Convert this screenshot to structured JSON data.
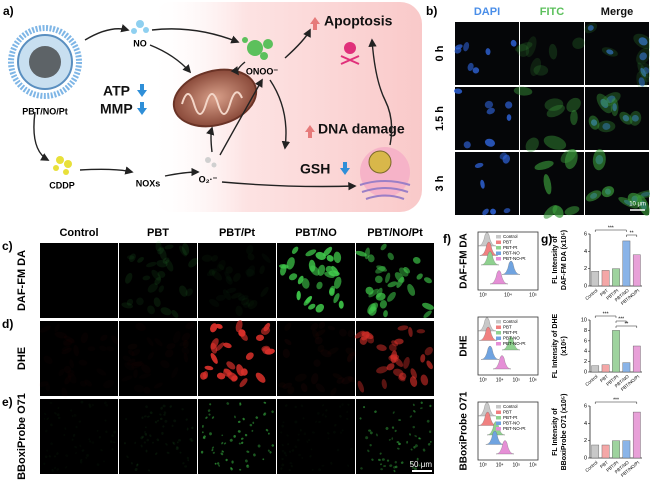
{
  "panel_a": {
    "label": "a)",
    "nanoparticle": "PBT/NO/Pt",
    "no": "NO",
    "onoo": "ONOO⁻",
    "apoptosis": "Apoptosis",
    "atp": "ATP",
    "mmp": "MMP",
    "dna": "DNA damage",
    "gsh": "GSH",
    "cddp": "CDDP",
    "noxs": "NOXs",
    "superoxide": "O₂·⁻"
  },
  "panel_b": {
    "label": "b)",
    "columns": [
      "DAPI",
      "FITC",
      "Merge"
    ],
    "rows": [
      "0 h",
      "1.5 h",
      "3 h"
    ],
    "scale": "10 μm"
  },
  "panel_cde": {
    "letters": [
      "c)",
      "d)",
      "e)"
    ],
    "columns": [
      "Control",
      "PBT",
      "PBT/Pt",
      "PBT/NO",
      "PBT/NO/Pt"
    ],
    "rows": [
      "DAF-FM DA",
      "DHE",
      "BBoxiProbe O71"
    ],
    "scale": "50 μm"
  },
  "panel_f": {
    "label": "f)",
    "legend": [
      "Control",
      "PBT",
      "PBT-Pt",
      "PBT-NO",
      "PBT-NO-Pt"
    ],
    "legend_colors": [
      "#c8c8c8",
      "#f08080",
      "#8fd18f",
      "#6fa3e0",
      "#e58fd6"
    ],
    "plots": [
      {
        "ylabel": "DAF-FM DA",
        "xtick_labels": [
          "10³",
          "10⁴",
          "10⁵"
        ]
      },
      {
        "ylabel": "DHE",
        "xtick_labels": [
          "10³",
          "10⁴",
          "10⁵",
          "10⁶"
        ]
      },
      {
        "ylabel": "BBoxiProbe O71",
        "xtick_labels": [
          "10³",
          "10⁴",
          "10⁵",
          "10⁶"
        ]
      }
    ]
  },
  "panel_g": {
    "label": "g)"
  },
  "chart_data": [
    {
      "type": "bar",
      "ylabel": [
        "FL Intensity of",
        "DAF-FM DA (x10⁵)"
      ],
      "categories": [
        "Control",
        "PBT",
        "PBT/Pt",
        "PBT/NO",
        "PBT/NO/Pt"
      ],
      "values": [
        1.7,
        1.8,
        2.0,
        5.2,
        3.6
      ],
      "colors": [
        "#c8c8c8",
        "#f4a7a7",
        "#9ed39e",
        "#8ab4e8",
        "#e8a0d8"
      ],
      "ylim": [
        0,
        6
      ],
      "yticks": [
        0,
        2,
        4,
        6
      ],
      "annotations": [
        "***",
        "**"
      ]
    },
    {
      "type": "bar",
      "ylabel": [
        "FL Intensity of DHE",
        "(x10⁵)"
      ],
      "categories": [
        "Control",
        "PBT",
        "PBT/Pt",
        "PBT/NO",
        "PBT/NO/Pt"
      ],
      "values": [
        1.2,
        1.4,
        8.0,
        1.8,
        5.0
      ],
      "colors": [
        "#c8c8c8",
        "#f4a7a7",
        "#9ed39e",
        "#8ab4e8",
        "#e8a0d8"
      ],
      "ylim": [
        0,
        10
      ],
      "yticks": [
        0,
        2,
        4,
        6,
        8,
        10
      ],
      "annotations": [
        "***",
        "***",
        "**"
      ]
    },
    {
      "type": "bar",
      "ylabel": [
        "FL Intensity of",
        "BBoxiProbe O71 (x10⁵)"
      ],
      "categories": [
        "Control",
        "PBT",
        "PBT/Pt",
        "PBT/NO",
        "PBT/NO/Pt"
      ],
      "values": [
        1.5,
        1.5,
        2.0,
        2.0,
        5.3
      ],
      "colors": [
        "#c8c8c8",
        "#f4a7a7",
        "#9ed39e",
        "#8ab4e8",
        "#e8a0d8"
      ],
      "ylim": [
        0,
        6
      ],
      "yticks": [
        0,
        2,
        4,
        6
      ],
      "annotations": [
        "***"
      ]
    }
  ]
}
